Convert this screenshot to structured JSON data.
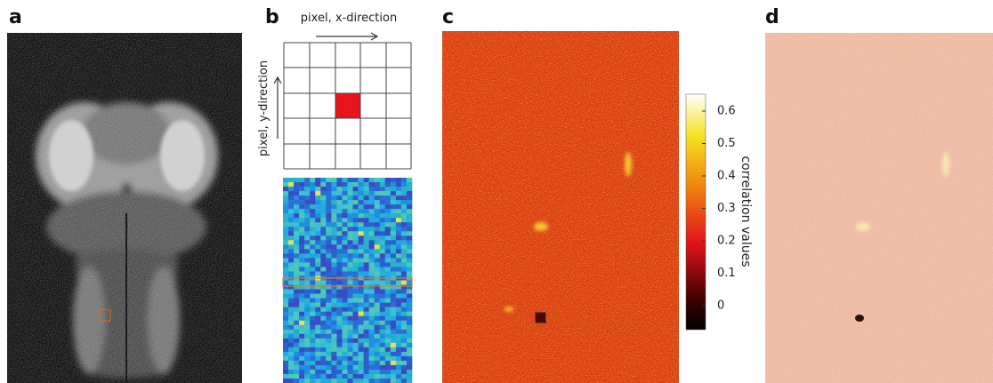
{
  "panels": {
    "a": {
      "label": "a"
    },
    "b": {
      "label": "b",
      "x_axis": "pixel, x-direction",
      "y_axis": "pixel, y-direction"
    },
    "c": {
      "label": "c"
    },
    "d": {
      "label": "d"
    }
  },
  "colorbar": {
    "label": "correlation values",
    "lim": [
      -0.074,
      0.652
    ],
    "ticks": [
      0,
      0.1,
      0.2,
      0.3,
      0.4,
      0.5,
      0.6
    ]
  }
}
